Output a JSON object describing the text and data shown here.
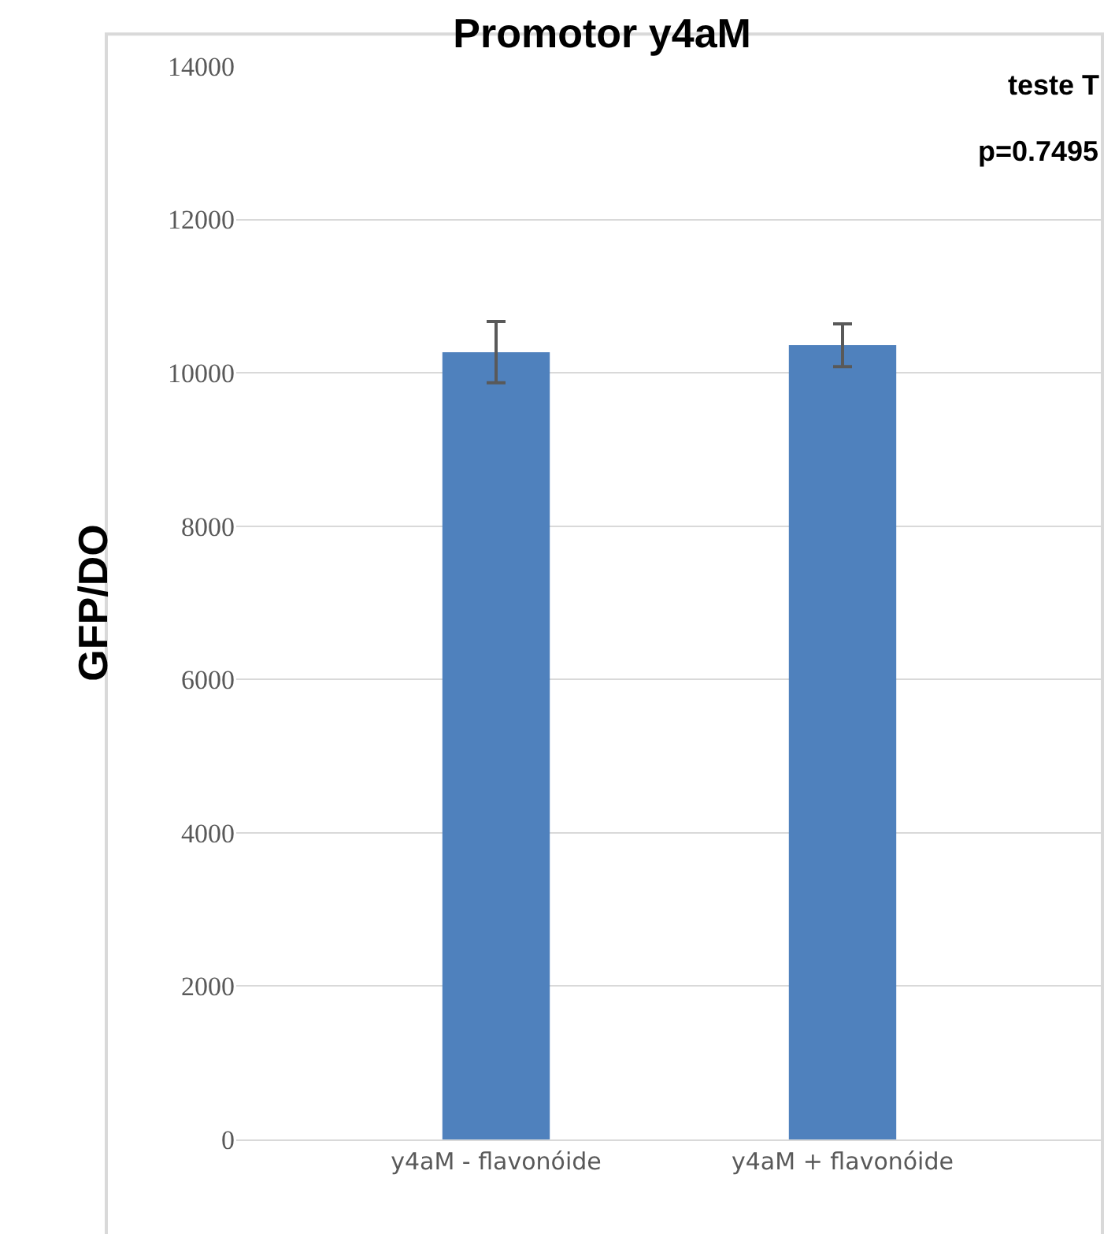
{
  "chart_data": {
    "type": "bar",
    "title": "Promotor y4aM",
    "ylabel": "GFP/DO",
    "categories": [
      "y4aM - flavonóide",
      "y4aM + flavonóide"
    ],
    "values": [
      10270,
      10360
    ],
    "errors": [
      400,
      280
    ],
    "color": "#4f81bd",
    "ylim": [
      0,
      14000
    ],
    "yticks": [
      0,
      2000,
      4000,
      6000,
      8000,
      10000,
      12000,
      14000
    ],
    "grid": "y",
    "annotations": [
      "teste T",
      "p=0.7495"
    ]
  }
}
